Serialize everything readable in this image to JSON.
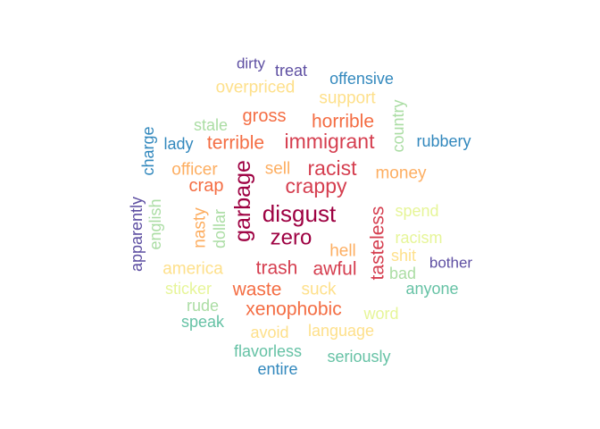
{
  "chart_data": {
    "type": "wordcloud",
    "title": "",
    "words": [
      {
        "text": "disgust",
        "color": "#9e0142"
      },
      {
        "text": "garbage",
        "color": "#9e0142"
      },
      {
        "text": "zero",
        "color": "#9e0142"
      },
      {
        "text": "immigrant",
        "color": "#d53e4f"
      },
      {
        "text": "racist",
        "color": "#d53e4f"
      },
      {
        "text": "crappy",
        "color": "#d53e4f"
      },
      {
        "text": "trash",
        "color": "#d53e4f"
      },
      {
        "text": "awful",
        "color": "#d53e4f"
      },
      {
        "text": "tasteless",
        "color": "#d53e4f"
      },
      {
        "text": "terrible",
        "color": "#f46d43"
      },
      {
        "text": "horrible",
        "color": "#f46d43"
      },
      {
        "text": "waste",
        "color": "#f46d43"
      },
      {
        "text": "xenophobic",
        "color": "#f46d43"
      },
      {
        "text": "gross",
        "color": "#f46d43"
      },
      {
        "text": "crap",
        "color": "#f46d43"
      },
      {
        "text": "nasty",
        "color": "#fdae61"
      },
      {
        "text": "officer",
        "color": "#fdae61"
      },
      {
        "text": "sell",
        "color": "#fdae61"
      },
      {
        "text": "money",
        "color": "#fdae61"
      },
      {
        "text": "hell",
        "color": "#fdae61"
      },
      {
        "text": "america",
        "color": "#fee08b"
      },
      {
        "text": "suck",
        "color": "#fee08b"
      },
      {
        "text": "overpriced",
        "color": "#fee08b"
      },
      {
        "text": "support",
        "color": "#fee08b"
      },
      {
        "text": "avoid",
        "color": "#fee08b"
      },
      {
        "text": "language",
        "color": "#fee08b"
      },
      {
        "text": "shit",
        "color": "#fee08b"
      },
      {
        "text": "spend",
        "color": "#e6f598"
      },
      {
        "text": "racism",
        "color": "#e6f598"
      },
      {
        "text": "sticker",
        "color": "#e6f598"
      },
      {
        "text": "word",
        "color": "#e6f598"
      },
      {
        "text": "stale",
        "color": "#abdda4"
      },
      {
        "text": "country",
        "color": "#abdda4"
      },
      {
        "text": "dollar",
        "color": "#abdda4"
      },
      {
        "text": "english",
        "color": "#abdda4"
      },
      {
        "text": "rude",
        "color": "#abdda4"
      },
      {
        "text": "bad",
        "color": "#abdda4"
      },
      {
        "text": "flavorless",
        "color": "#66c2a5"
      },
      {
        "text": "seriously",
        "color": "#66c2a5"
      },
      {
        "text": "speak",
        "color": "#66c2a5"
      },
      {
        "text": "anyone",
        "color": "#66c2a5"
      },
      {
        "text": "offensive",
        "color": "#3288bd"
      },
      {
        "text": "charge",
        "color": "#3288bd"
      },
      {
        "text": "rubbery",
        "color": "#3288bd"
      },
      {
        "text": "lady",
        "color": "#3288bd"
      },
      {
        "text": "entire",
        "color": "#3288bd"
      },
      {
        "text": "dirty",
        "color": "#5e4fa2"
      },
      {
        "text": "treat",
        "color": "#5e4fa2"
      },
      {
        "text": "apparently",
        "color": "#5e4fa2"
      },
      {
        "text": "bother",
        "color": "#5e4fa2"
      }
    ]
  }
}
